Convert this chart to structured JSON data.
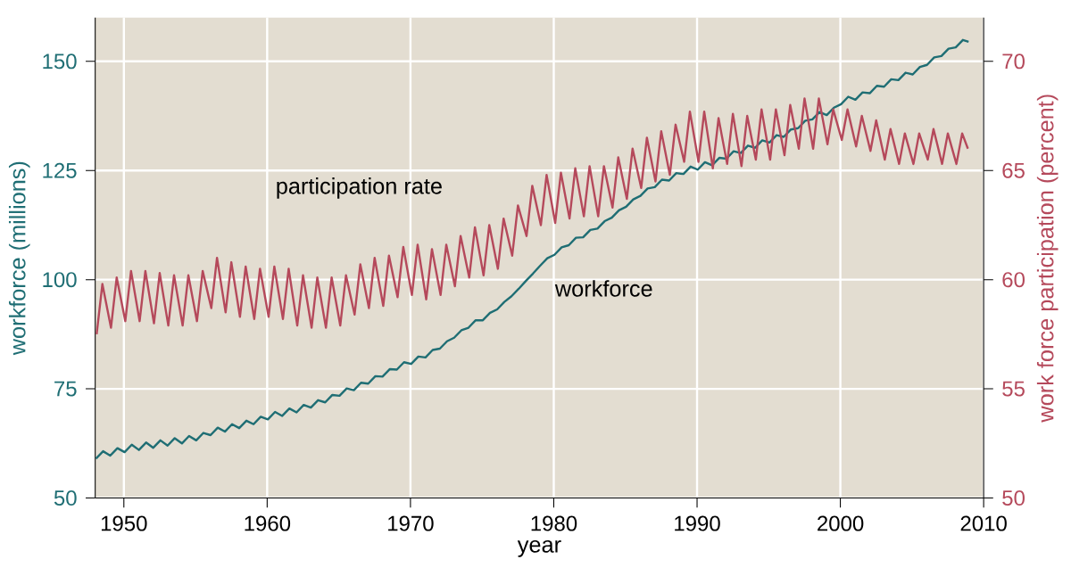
{
  "chart_data": {
    "type": "line",
    "xlabel": "year",
    "ylabel": "workforce (millions)",
    "y2label": "work force participation (percent)",
    "xlim": [
      1948,
      2010
    ],
    "xticks": [
      1950,
      1960,
      1970,
      1980,
      1990,
      2000,
      2010
    ],
    "ylim": [
      50,
      160
    ],
    "yticks": [
      50,
      75,
      100,
      125,
      150
    ],
    "y2lim": [
      50,
      72
    ],
    "y2ticks": [
      50,
      55,
      60,
      65,
      70
    ],
    "grid": true,
    "series": [
      {
        "name": "workforce",
        "color": "#1f6e74",
        "axis": "y",
        "x": [
          1948.05,
          1948.55,
          1949.05,
          1949.55,
          1950.05,
          1950.55,
          1951.05,
          1951.55,
          1952.05,
          1952.55,
          1953.05,
          1953.55,
          1954.05,
          1954.55,
          1955.05,
          1955.55,
          1956.05,
          1956.55,
          1957.05,
          1957.55,
          1958.05,
          1958.55,
          1959.05,
          1959.55,
          1960.05,
          1960.55,
          1961.05,
          1961.55,
          1962.05,
          1962.55,
          1963.05,
          1963.55,
          1964.05,
          1964.55,
          1965.05,
          1965.55,
          1966.05,
          1966.55,
          1967.05,
          1967.55,
          1968.05,
          1968.55,
          1969.05,
          1969.55,
          1970.05,
          1970.55,
          1971.05,
          1971.55,
          1972.05,
          1972.55,
          1973.05,
          1973.55,
          1974.05,
          1974.55,
          1975.05,
          1975.55,
          1976.05,
          1976.55,
          1977.05,
          1977.55,
          1978.05,
          1978.55,
          1979.05,
          1979.55,
          1980.05,
          1980.55,
          1981.05,
          1981.55,
          1982.05,
          1982.55,
          1983.05,
          1983.55,
          1984.05,
          1984.55,
          1985.05,
          1985.55,
          1986.05,
          1986.55,
          1987.05,
          1987.55,
          1988.05,
          1988.55,
          1989.05,
          1989.55,
          1990.05,
          1990.55,
          1991.05,
          1991.55,
          1992.05,
          1992.55,
          1993.05,
          1993.55,
          1994.05,
          1994.55,
          1995.05,
          1995.55,
          1996.05,
          1996.55,
          1997.05,
          1997.55,
          1998.05,
          1998.55,
          1999.05,
          1999.55,
          2000.05,
          2000.55,
          2001.05,
          2001.55,
          2002.05,
          2002.55,
          2003.05,
          2003.55,
          2004.05,
          2004.55,
          2005.05,
          2005.55,
          2006.05,
          2006.55,
          2007.05,
          2007.55,
          2008.05,
          2008.55,
          2008.95
        ],
        "values": [
          59.0,
          60.7,
          59.7,
          61.4,
          60.5,
          62.2,
          61.0,
          62.7,
          61.5,
          63.2,
          62.0,
          63.7,
          62.5,
          64.2,
          63.2,
          64.9,
          64.4,
          66.1,
          65.2,
          66.9,
          66.0,
          67.7,
          66.9,
          68.6,
          68.0,
          69.7,
          68.8,
          70.5,
          69.6,
          71.3,
          70.7,
          72.4,
          71.9,
          73.6,
          73.4,
          75.1,
          74.7,
          76.4,
          76.2,
          77.9,
          77.8,
          79.5,
          79.4,
          81.1,
          80.7,
          82.4,
          82.2,
          83.9,
          84.2,
          85.9,
          86.7,
          88.4,
          89.0,
          90.7,
          90.7,
          92.4,
          93.2,
          94.9,
          96.2,
          97.9,
          99.7,
          101.4,
          103.2,
          104.9,
          105.7,
          107.4,
          107.9,
          109.6,
          109.7,
          111.4,
          111.7,
          113.4,
          114.2,
          115.9,
          116.7,
          118.4,
          119.2,
          120.9,
          121.2,
          122.9,
          122.7,
          124.4,
          124.2,
          125.9,
          125.2,
          126.9,
          126.2,
          127.9,
          127.7,
          129.4,
          129.0,
          130.7,
          130.2,
          131.9,
          131.4,
          133.1,
          132.7,
          134.4,
          134.7,
          136.4,
          136.7,
          138.4,
          137.7,
          139.4,
          140.2,
          141.9,
          141.2,
          142.9,
          142.7,
          144.4,
          144.2,
          145.9,
          145.7,
          147.4,
          147.0,
          148.7,
          149.2,
          150.9,
          151.2,
          152.9,
          153.2,
          154.9,
          154.5
        ]
      },
      {
        "name": "participation rate",
        "color": "#b5495b",
        "axis": "y2",
        "x": [
          1948.1,
          1948.5,
          1949.1,
          1949.5,
          1950.1,
          1950.5,
          1951.1,
          1951.5,
          1952.1,
          1952.5,
          1953.1,
          1953.5,
          1954.1,
          1954.5,
          1955.1,
          1955.5,
          1956.1,
          1956.5,
          1957.1,
          1957.5,
          1958.1,
          1958.5,
          1959.1,
          1959.5,
          1960.1,
          1960.5,
          1961.1,
          1961.5,
          1962.1,
          1962.5,
          1963.1,
          1963.5,
          1964.1,
          1964.5,
          1965.1,
          1965.5,
          1966.1,
          1966.5,
          1967.1,
          1967.5,
          1968.1,
          1968.5,
          1969.1,
          1969.5,
          1970.1,
          1970.5,
          1971.1,
          1971.5,
          1972.1,
          1972.5,
          1973.1,
          1973.5,
          1974.1,
          1974.5,
          1975.1,
          1975.5,
          1976.1,
          1976.5,
          1977.1,
          1977.5,
          1978.1,
          1978.5,
          1979.1,
          1979.5,
          1980.1,
          1980.5,
          1981.1,
          1981.5,
          1982.1,
          1982.5,
          1983.1,
          1983.5,
          1984.1,
          1984.5,
          1985.1,
          1985.5,
          1986.1,
          1986.5,
          1987.1,
          1987.5,
          1988.1,
          1988.5,
          1989.1,
          1989.5,
          1990.1,
          1990.5,
          1991.1,
          1991.5,
          1992.1,
          1992.5,
          1993.1,
          1993.5,
          1994.1,
          1994.5,
          1995.1,
          1995.5,
          1996.1,
          1996.5,
          1997.1,
          1997.5,
          1998.1,
          1998.5,
          1999.1,
          1999.5,
          2000.1,
          2000.5,
          2001.1,
          2001.5,
          2002.1,
          2002.5,
          2003.1,
          2003.5,
          2004.1,
          2004.5,
          2005.1,
          2005.5,
          2006.1,
          2006.5,
          2007.1,
          2007.5,
          2008.1,
          2008.5,
          2008.9
        ],
        "values": [
          57.5,
          59.8,
          57.8,
          60.1,
          58.1,
          60.4,
          58.1,
          60.4,
          58.0,
          60.3,
          57.9,
          60.2,
          57.9,
          60.2,
          58.1,
          60.4,
          58.7,
          61.0,
          58.5,
          60.8,
          58.3,
          60.6,
          58.2,
          60.5,
          58.3,
          60.6,
          58.2,
          60.5,
          57.9,
          60.2,
          57.8,
          60.1,
          57.8,
          60.1,
          57.9,
          60.2,
          58.4,
          60.7,
          58.7,
          61.0,
          58.8,
          61.1,
          59.2,
          61.5,
          59.3,
          61.6,
          59.1,
          61.4,
          59.3,
          61.6,
          59.7,
          62.0,
          60.1,
          62.4,
          60.2,
          62.5,
          60.5,
          62.8,
          61.1,
          63.4,
          62.0,
          64.3,
          62.5,
          64.8,
          62.6,
          64.9,
          62.8,
          65.1,
          62.9,
          65.2,
          62.9,
          65.2,
          63.3,
          65.6,
          63.7,
          66.0,
          64.2,
          66.5,
          64.5,
          66.8,
          64.8,
          67.1,
          65.4,
          67.7,
          65.4,
          67.7,
          65.1,
          67.4,
          65.3,
          67.6,
          65.2,
          67.5,
          65.5,
          67.8,
          65.5,
          67.8,
          65.7,
          68.0,
          66.0,
          68.3,
          66.0,
          68.3,
          66.2,
          67.8,
          66.4,
          67.8,
          66.1,
          67.5,
          65.9,
          67.3,
          65.5,
          66.9,
          65.3,
          66.7,
          65.3,
          66.7,
          65.5,
          66.9,
          65.3,
          66.7,
          65.3,
          66.7,
          66.0
        ]
      }
    ]
  }
}
